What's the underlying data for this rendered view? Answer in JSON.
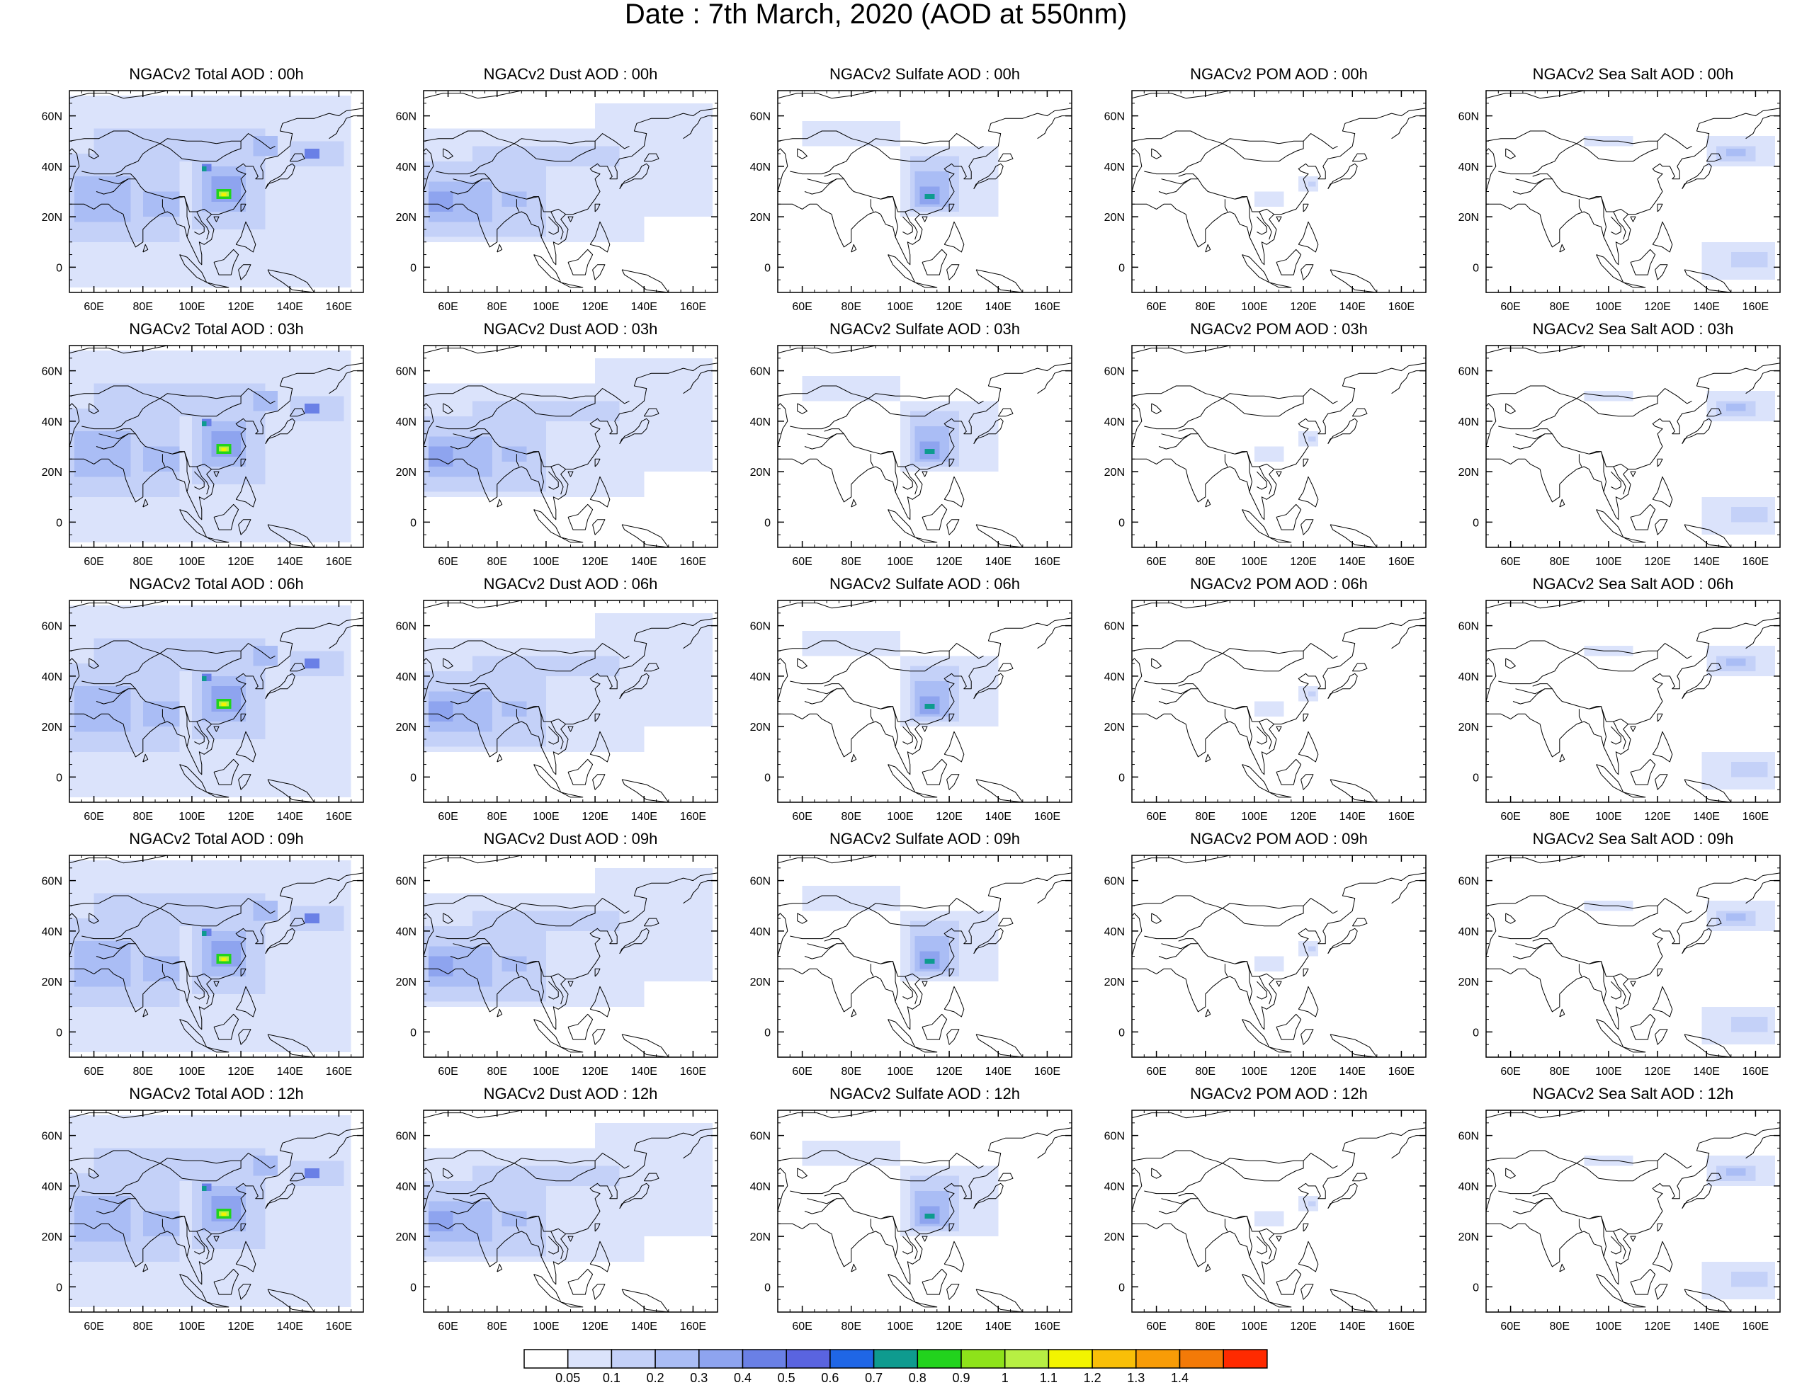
{
  "title": "Date : 7th March, 2020 (AOD at 550nm)",
  "map": {
    "lon_ticks": [
      "60E",
      "80E",
      "100E",
      "120E",
      "140E",
      "160E"
    ],
    "lat_ticks": [
      "60N",
      "40N",
      "20N",
      "0"
    ],
    "lon_range": [
      50,
      170
    ],
    "lat_range": [
      -10,
      70
    ]
  },
  "legend": {
    "labels": [
      "0.05",
      "0.1",
      "0.2",
      "0.3",
      "0.4",
      "0.5",
      "0.6",
      "0.7",
      "0.8",
      "0.9",
      "1",
      "1.1",
      "1.2",
      "1.3",
      "1.4"
    ],
    "colors": [
      "#ffffff",
      "#dbe3fb",
      "#c4d1f8",
      "#aabdf5",
      "#8ea4ef",
      "#6a80e6",
      "#5a64e0",
      "#1f66e6",
      "#0e9b8f",
      "#22d31d",
      "#8ee21a",
      "#b7ef43",
      "#f2f400",
      "#f9bf08",
      "#f89c07",
      "#f37a08",
      "#ff2a00"
    ]
  },
  "panels": [
    [
      "NGACv2 Total AOD : 00h",
      "NGACv2 Dust AOD : 00h",
      "NGACv2 Sulfate AOD : 00h",
      "NGACv2 POM AOD : 00h",
      "NGACv2 Sea Salt AOD : 00h"
    ],
    [
      "NGACv2 Total AOD : 03h",
      "NGACv2 Dust AOD : 03h",
      "NGACv2 Sulfate AOD : 03h",
      "NGACv2 POM AOD : 03h",
      "NGACv2 Sea Salt AOD : 03h"
    ],
    [
      "NGACv2 Total AOD : 06h",
      "NGACv2 Dust AOD : 06h",
      "NGACv2 Sulfate AOD : 06h",
      "NGACv2 POM AOD : 06h",
      "NGACv2 Sea Salt AOD : 06h"
    ],
    [
      "NGACv2 Total AOD : 09h",
      "NGACv2 Dust AOD : 09h",
      "NGACv2 Sulfate AOD : 09h",
      "NGACv2 POM AOD : 09h",
      "NGACv2 Sea Salt  AOD : 09h"
    ],
    [
      "NGACv2 Total AOD  : 12h",
      "NGACv2 Dust AOD : 12h",
      "NGACv2 Sulfate AOD : 12h",
      "NGACv2 POM  AOD : 12h",
      "NGACv2 Sea Salt  AOD : 12h"
    ]
  ]
}
